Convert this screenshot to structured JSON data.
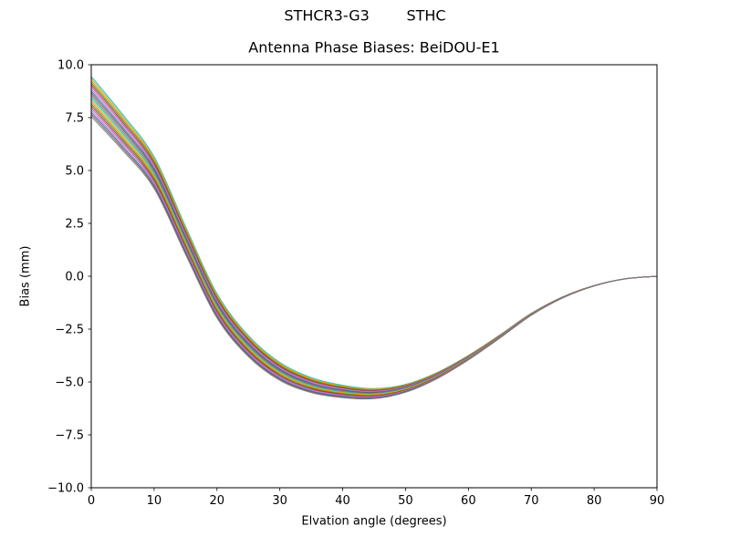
{
  "figure": {
    "suptitle": "STHCR3-G3        STHC",
    "title": "Antenna Phase Biases: BeiDOU-E1",
    "xlabel": "Elvation angle (degrees)",
    "ylabel": "Bias (mm)"
  },
  "chart_data": {
    "type": "line",
    "suptitle": "STHCR3-G3        STHC",
    "title": "Antenna Phase Biases: BeiDOU-E1",
    "xlabel": "Elvation angle (degrees)",
    "ylabel": "Bias (mm)",
    "xlim": [
      0,
      90
    ],
    "ylim": [
      -10,
      10
    ],
    "xticks": [
      0,
      10,
      20,
      30,
      40,
      50,
      60,
      70,
      80,
      90
    ],
    "xtick_labels": [
      "0",
      "10",
      "20",
      "30",
      "40",
      "50",
      "60",
      "70",
      "80",
      "90"
    ],
    "yticks": [
      -10,
      -7.5,
      -5,
      -2.5,
      0,
      2.5,
      5,
      7.5,
      10
    ],
    "ytick_labels": [
      "−10.0",
      "−7.5",
      "−5.0",
      "−2.5",
      "0.0",
      "2.5",
      "5.0",
      "7.5",
      "10.0"
    ],
    "grid": false,
    "legend": "none",
    "x": [
      0,
      5,
      10,
      15,
      20,
      25,
      30,
      35,
      40,
      45,
      50,
      55,
      60,
      65,
      70,
      75,
      80,
      85,
      90
    ],
    "base_curve": [
      8.5,
      6.8,
      4.9,
      1.7,
      -1.4,
      -3.3,
      -4.5,
      -5.15,
      -5.45,
      -5.55,
      -5.3,
      -4.7,
      -3.85,
      -2.85,
      -1.8,
      -1.0,
      -0.45,
      -0.12,
      0.0
    ],
    "series_model": "y(x) = base_curve(x) + offset * (1 - x/90)^2 ; tight bundle of per-satellite bias curves fanning out near 0 deg (approx 7.6 to 9.5 mm), minimum approx -5.5 mm near 45 deg, converging to 0 mm at 90 deg",
    "series": [
      {
        "name": "series-1",
        "color": "#17becf",
        "offset": 0.95
      },
      {
        "name": "series-2",
        "color": "#bcbd22",
        "offset": 0.85
      },
      {
        "name": "series-3",
        "color": "#ff7f0e",
        "offset": 0.75
      },
      {
        "name": "series-4",
        "color": "#2ca02c",
        "offset": 0.65
      },
      {
        "name": "series-5",
        "color": "#d62728",
        "offset": 0.55
      },
      {
        "name": "series-6",
        "color": "#9467bd",
        "offset": 0.45
      },
      {
        "name": "series-7",
        "color": "#e377c2",
        "offset": 0.35
      },
      {
        "name": "series-8",
        "color": "#1f77b4",
        "offset": 0.25
      },
      {
        "name": "series-9",
        "color": "#8c564b",
        "offset": 0.15
      },
      {
        "name": "series-10",
        "color": "#7f7f7f",
        "offset": 0.05
      },
      {
        "name": "series-11",
        "color": "#17becf",
        "offset": -0.05
      },
      {
        "name": "series-12",
        "color": "#bcbd22",
        "offset": -0.15
      },
      {
        "name": "series-13",
        "color": "#ff7f0e",
        "offset": -0.25
      },
      {
        "name": "series-14",
        "color": "#2ca02c",
        "offset": -0.35
      },
      {
        "name": "series-15",
        "color": "#d62728",
        "offset": -0.45
      },
      {
        "name": "series-16",
        "color": "#9467bd",
        "offset": -0.55
      },
      {
        "name": "series-17",
        "color": "#e377c2",
        "offset": -0.65
      },
      {
        "name": "series-18",
        "color": "#1f77b4",
        "offset": -0.75
      },
      {
        "name": "series-19",
        "color": "#8c564b",
        "offset": -0.85
      },
      {
        "name": "series-20",
        "color": "#7f7f7f",
        "offset": -0.95
      }
    ],
    "axis_color": "#000000",
    "background_color": "#ffffff"
  }
}
